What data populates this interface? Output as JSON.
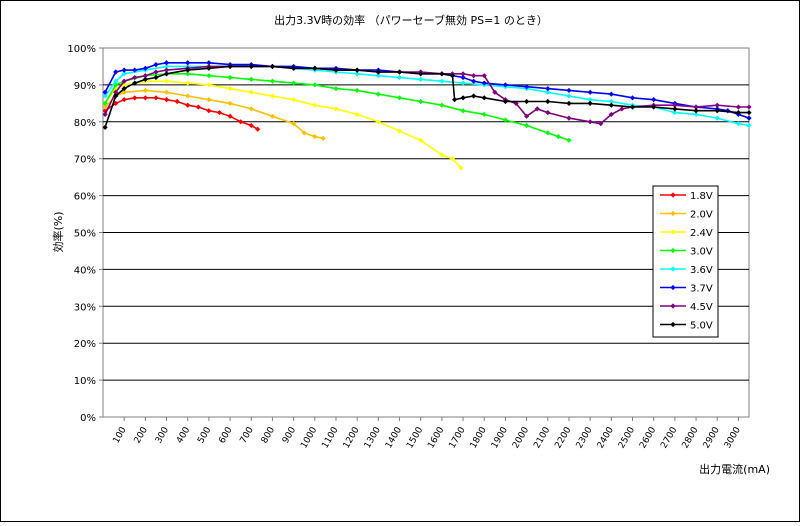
{
  "chart_data": {
    "type": "line",
    "title": "出力3.3V時の効率 （パワーセーブ無効 PS=1 のとき）",
    "xlabel": "出力電流(mA)",
    "ylabel": "効率(%)",
    "ylim": [
      0,
      100
    ],
    "y_ticks": [
      "0%",
      "10%",
      "20%",
      "30%",
      "40%",
      "50%",
      "60%",
      "70%",
      "80%",
      "90%",
      "100%"
    ],
    "x_ticks": [
      "100",
      "200",
      "300",
      "400",
      "500",
      "600",
      "700",
      "800",
      "900",
      "1000",
      "1100",
      "1200",
      "1300",
      "1400",
      "1500",
      "1600",
      "1700",
      "1800",
      "1900",
      "2000",
      "2100",
      "2200",
      "2300",
      "2400",
      "2500",
      "2600",
      "2700",
      "2800",
      "2900",
      "3000"
    ],
    "x_min": 0,
    "x_max": 3050,
    "grid": "horizontal",
    "legend_position": "right",
    "series": [
      {
        "name": "1.8V",
        "color": "#ff0000",
        "points": [
          [
            10,
            83
          ],
          [
            60,
            85
          ],
          [
            100,
            86
          ],
          [
            150,
            86.5
          ],
          [
            200,
            86.5
          ],
          [
            250,
            86.5
          ],
          [
            300,
            86
          ],
          [
            350,
            85.5
          ],
          [
            400,
            84.5
          ],
          [
            450,
            84
          ],
          [
            500,
            83
          ],
          [
            550,
            82.5
          ],
          [
            600,
            81.5
          ],
          [
            650,
            80
          ],
          [
            700,
            79
          ],
          [
            730,
            78
          ]
        ]
      },
      {
        "name": "2.0V",
        "color": "#ffc000",
        "points": [
          [
            10,
            84
          ],
          [
            60,
            87
          ],
          [
            100,
            88
          ],
          [
            200,
            88.5
          ],
          [
            300,
            88
          ],
          [
            400,
            87
          ],
          [
            500,
            86
          ],
          [
            600,
            85
          ],
          [
            700,
            83.5
          ],
          [
            800,
            81.5
          ],
          [
            900,
            79.5
          ],
          [
            950,
            77
          ],
          [
            1000,
            76
          ],
          [
            1040,
            75.5
          ]
        ]
      },
      {
        "name": "2.4V",
        "color": "#ffff00",
        "points": [
          [
            10,
            85
          ],
          [
            60,
            89
          ],
          [
            100,
            90
          ],
          [
            200,
            91
          ],
          [
            300,
            91
          ],
          [
            400,
            90.5
          ],
          [
            500,
            90
          ],
          [
            600,
            89
          ],
          [
            700,
            88
          ],
          [
            800,
            87
          ],
          [
            900,
            86
          ],
          [
            1000,
            84.5
          ],
          [
            1100,
            83.5
          ],
          [
            1200,
            82
          ],
          [
            1300,
            80
          ],
          [
            1400,
            77.5
          ],
          [
            1500,
            75
          ],
          [
            1600,
            71
          ],
          [
            1650,
            70
          ],
          [
            1690,
            67.5
          ]
        ]
      },
      {
        "name": "3.0V",
        "color": "#00ff00",
        "points": [
          [
            10,
            85
          ],
          [
            60,
            90
          ],
          [
            100,
            91
          ],
          [
            200,
            92.5
          ],
          [
            300,
            93
          ],
          [
            400,
            93
          ],
          [
            500,
            92.5
          ],
          [
            600,
            92
          ],
          [
            700,
            91.5
          ],
          [
            800,
            91
          ],
          [
            900,
            90.5
          ],
          [
            1000,
            90
          ],
          [
            1100,
            89
          ],
          [
            1200,
            88.5
          ],
          [
            1300,
            87.5
          ],
          [
            1400,
            86.5
          ],
          [
            1500,
            85.5
          ],
          [
            1600,
            84.5
          ],
          [
            1700,
            83
          ],
          [
            1800,
            82
          ],
          [
            1900,
            80.5
          ],
          [
            2000,
            79
          ],
          [
            2100,
            77
          ],
          [
            2150,
            76
          ],
          [
            2200,
            75
          ]
        ]
      },
      {
        "name": "3.6V",
        "color": "#00ffff",
        "points": [
          [
            10,
            87
          ],
          [
            60,
            91
          ],
          [
            100,
            93
          ],
          [
            200,
            94
          ],
          [
            300,
            95
          ],
          [
            400,
            95
          ],
          [
            500,
            95
          ],
          [
            600,
            95
          ],
          [
            700,
            95
          ],
          [
            800,
            95
          ],
          [
            900,
            94.5
          ],
          [
            1000,
            94
          ],
          [
            1100,
            93.5
          ],
          [
            1200,
            93
          ],
          [
            1300,
            92.5
          ],
          [
            1400,
            92
          ],
          [
            1500,
            91.5
          ],
          [
            1600,
            91
          ],
          [
            1700,
            90.5
          ],
          [
            1800,
            90
          ],
          [
            1900,
            89.5
          ],
          [
            2000,
            89
          ],
          [
            2100,
            88
          ],
          [
            2200,
            87
          ],
          [
            2300,
            86
          ],
          [
            2400,
            85.5
          ],
          [
            2500,
            84.5
          ],
          [
            2600,
            84
          ],
          [
            2700,
            82.5
          ],
          [
            2800,
            82
          ],
          [
            2900,
            81
          ],
          [
            3000,
            79.5
          ],
          [
            3050,
            79
          ]
        ]
      },
      {
        "name": "3.7V",
        "color": "#0000ff",
        "points": [
          [
            10,
            88
          ],
          [
            60,
            93.5
          ],
          [
            100,
            94
          ],
          [
            150,
            94
          ],
          [
            200,
            94.5
          ],
          [
            250,
            95.5
          ],
          [
            300,
            96
          ],
          [
            400,
            96
          ],
          [
            500,
            96
          ],
          [
            600,
            95.5
          ],
          [
            700,
            95.5
          ],
          [
            800,
            95
          ],
          [
            900,
            95
          ],
          [
            1000,
            94.5
          ],
          [
            1100,
            94.5
          ],
          [
            1200,
            94
          ],
          [
            1300,
            94
          ],
          [
            1400,
            93.5
          ],
          [
            1500,
            93
          ],
          [
            1600,
            93
          ],
          [
            1700,
            92
          ],
          [
            1750,
            91
          ],
          [
            1800,
            90.5
          ],
          [
            1900,
            90
          ],
          [
            2000,
            89.5
          ],
          [
            2100,
            89
          ],
          [
            2200,
            88.5
          ],
          [
            2300,
            88
          ],
          [
            2400,
            87.5
          ],
          [
            2500,
            86.5
          ],
          [
            2600,
            86
          ],
          [
            2700,
            85
          ],
          [
            2800,
            84
          ],
          [
            2900,
            83.5
          ],
          [
            2950,
            83
          ],
          [
            3000,
            82
          ],
          [
            3050,
            81
          ]
        ]
      },
      {
        "name": "4.5V",
        "color": "#800080",
        "points": [
          [
            10,
            82
          ],
          [
            60,
            88
          ],
          [
            100,
            91
          ],
          [
            150,
            92
          ],
          [
            200,
            92.5
          ],
          [
            250,
            93.5
          ],
          [
            300,
            94
          ],
          [
            400,
            94.5
          ],
          [
            500,
            95
          ],
          [
            600,
            95
          ],
          [
            700,
            95
          ],
          [
            800,
            95
          ],
          [
            900,
            94.5
          ],
          [
            1000,
            94.5
          ],
          [
            1100,
            94
          ],
          [
            1200,
            94
          ],
          [
            1300,
            93.5
          ],
          [
            1400,
            93.5
          ],
          [
            1500,
            93.5
          ],
          [
            1600,
            93
          ],
          [
            1650,
            93
          ],
          [
            1700,
            93
          ],
          [
            1750,
            92.5
          ],
          [
            1800,
            92.5
          ],
          [
            1850,
            88
          ],
          [
            1900,
            86
          ],
          [
            1950,
            85
          ],
          [
            2000,
            81.5
          ],
          [
            2050,
            83.5
          ],
          [
            2100,
            82.5
          ],
          [
            2200,
            81
          ],
          [
            2300,
            80
          ],
          [
            2350,
            79.5
          ],
          [
            2400,
            82
          ],
          [
            2450,
            83.5
          ],
          [
            2500,
            84
          ],
          [
            2600,
            84.5
          ],
          [
            2700,
            84.5
          ],
          [
            2800,
            84
          ],
          [
            2900,
            84.5
          ],
          [
            3000,
            84
          ],
          [
            3050,
            84
          ]
        ]
      },
      {
        "name": "5.0V",
        "color": "#000000",
        "points": [
          [
            10,
            78.5
          ],
          [
            60,
            87
          ],
          [
            100,
            89
          ],
          [
            150,
            90.5
          ],
          [
            200,
            91.5
          ],
          [
            250,
            92
          ],
          [
            300,
            93
          ],
          [
            400,
            94
          ],
          [
            500,
            94.5
          ],
          [
            600,
            95
          ],
          [
            700,
            95
          ],
          [
            800,
            95
          ],
          [
            900,
            94.5
          ],
          [
            1000,
            94.5
          ],
          [
            1100,
            94
          ],
          [
            1200,
            94
          ],
          [
            1300,
            93.5
          ],
          [
            1400,
            93.5
          ],
          [
            1500,
            93
          ],
          [
            1600,
            93
          ],
          [
            1650,
            92.5
          ],
          [
            1660,
            86
          ],
          [
            1700,
            86.5
          ],
          [
            1750,
            87
          ],
          [
            1800,
            86.5
          ],
          [
            1900,
            85.5
          ],
          [
            2000,
            85.5
          ],
          [
            2100,
            85.5
          ],
          [
            2200,
            85
          ],
          [
            2300,
            85
          ],
          [
            2400,
            84.5
          ],
          [
            2500,
            84
          ],
          [
            2600,
            84
          ],
          [
            2700,
            83.5
          ],
          [
            2800,
            83
          ],
          [
            2900,
            83
          ],
          [
            3000,
            82.5
          ],
          [
            3050,
            82.5
          ]
        ]
      }
    ]
  }
}
